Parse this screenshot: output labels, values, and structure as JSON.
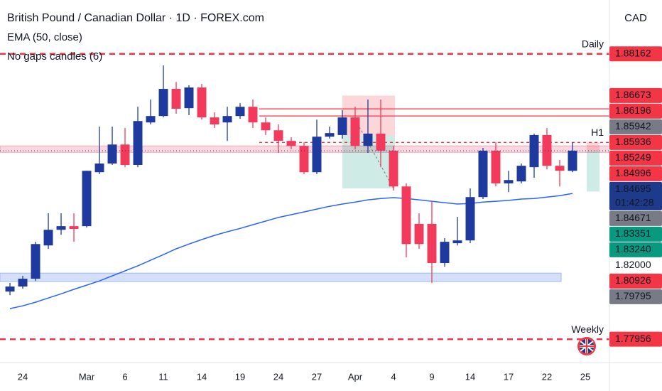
{
  "chart_data": {
    "type": "candlestick",
    "title": "British Pound / Canadian Dollar · 1D · FOREX.com",
    "subtitle": "No gaps candles (6)",
    "currency": "CAD",
    "up_color": "#1e3a9e",
    "down_color": "#f23a5c",
    "open": [
      1.7966,
      1.7984,
      1.8012,
      1.8131,
      1.8187,
      1.82,
      1.82,
      1.8393,
      1.8424,
      1.8492,
      1.8419,
      1.8571,
      1.8594,
      1.8691,
      1.8622,
      1.8696,
      1.8589,
      1.8571,
      1.8594,
      1.8627,
      1.8571,
      1.8543,
      1.8505,
      1.8487,
      1.8393,
      1.852,
      1.8526,
      1.8589,
      1.8487,
      1.8531,
      1.847,
      1.8342,
      1.8208,
      1.8208,
      1.8068,
      1.8139,
      1.8149,
      1.8304,
      1.847,
      1.8353,
      1.836,
      1.8411,
      1.8526,
      1.8416,
      1.8398
    ],
    "high": [
      1.7997,
      1.8022,
      1.8144,
      1.8246,
      1.8246,
      1.8246,
      1.8398,
      1.8556,
      1.8556,
      1.8551,
      1.8627,
      1.8653,
      1.8775,
      1.8716,
      1.8704,
      1.8709,
      1.8607,
      1.8627,
      1.864,
      1.8653,
      1.8589,
      1.8564,
      1.8518,
      1.85,
      1.8581,
      1.8556,
      1.8615,
      1.8627,
      1.8653,
      1.8653,
      1.8487,
      1.8353,
      1.8246,
      1.8289,
      1.8157,
      1.8233,
      1.8335,
      1.848,
      1.85,
      1.8398,
      1.8424,
      1.8531,
      1.8551,
      1.8437,
      1.85
    ],
    "low": [
      1.7953,
      1.7976,
      1.8004,
      1.8119,
      1.8169,
      1.8144,
      1.8195,
      1.8386,
      1.8419,
      1.8411,
      1.8411,
      1.8564,
      1.8589,
      1.8602,
      1.8597,
      1.8581,
      1.8551,
      1.8505,
      1.8584,
      1.8551,
      1.8526,
      1.8462,
      1.8475,
      1.8386,
      1.8386,
      1.8513,
      1.8513,
      1.8475,
      1.8462,
      1.8411,
      1.8327,
      1.8088,
      1.8119,
      1.7997,
      1.8055,
      1.8131,
      1.8139,
      1.8297,
      1.8342,
      1.8322,
      1.8353,
      1.8373,
      1.8403,
      1.8342,
      1.8393
    ],
    "close": [
      1.7984,
      1.8012,
      1.8136,
      1.8187,
      1.82,
      1.819,
      1.8398,
      1.8424,
      1.8492,
      1.8419,
      1.8576,
      1.8594,
      1.8691,
      1.862,
      1.8696,
      1.8589,
      1.8564,
      1.8594,
      1.8627,
      1.8571,
      1.8543,
      1.8505,
      1.8487,
      1.8393,
      1.852,
      1.8533,
      1.8589,
      1.8487,
      1.8531,
      1.847,
      1.8342,
      1.8136,
      1.8136,
      1.8068,
      1.8144,
      1.8149,
      1.8304,
      1.847,
      1.8353,
      1.8365,
      1.8416,
      1.8526,
      1.8416,
      1.8398,
      1.847
    ],
    "ema": {
      "name": "EMA (50, close)",
      "color": "#2962ff",
      "values": [
        1.7905,
        1.7915,
        1.7928,
        1.7943,
        1.7958,
        1.7974,
        1.7989,
        1.8004,
        1.8022,
        1.804,
        1.8058,
        1.8078,
        1.8098,
        1.8119,
        1.8136,
        1.8152,
        1.8167,
        1.818,
        1.8192,
        1.8205,
        1.8218,
        1.8231,
        1.8241,
        1.8251,
        1.8261,
        1.8271,
        1.8279,
        1.8286,
        1.8294,
        1.8299,
        1.8302,
        1.8299,
        1.8294,
        1.8289,
        1.8284,
        1.8279,
        1.8281,
        1.8286,
        1.8289,
        1.8292,
        1.8297,
        1.8299,
        1.8304,
        1.8309,
        1.8317
      ]
    },
    "xlim": [
      -0.78,
      46.89
    ],
    "xticks": [
      {
        "value": 1,
        "label": "24"
      },
      {
        "value": 6,
        "label": "Mar"
      },
      {
        "value": 9,
        "label": "6"
      },
      {
        "value": 12,
        "label": "11"
      },
      {
        "value": 15,
        "label": "14"
      },
      {
        "value": 18,
        "label": "19"
      },
      {
        "value": 21,
        "label": "24"
      },
      {
        "value": 24,
        "label": "27"
      },
      {
        "value": 27,
        "label": "Apr"
      },
      {
        "value": 30,
        "label": "4"
      },
      {
        "value": 33,
        "label": "9"
      },
      {
        "value": 36,
        "label": "14"
      },
      {
        "value": 39,
        "label": "17"
      },
      {
        "value": 42,
        "label": "22"
      },
      {
        "value": 45,
        "label": "25"
      }
    ],
    "ylim": [
      1.7712,
      1.9009
    ],
    "yticks": [
      {
        "value": 1.82,
        "label": "1.82000"
      }
    ],
    "levels": [
      {
        "value": 1.88162,
        "label": "Daily",
        "style": "dashed"
      },
      {
        "value": 1.77956,
        "label": "Weekly",
        "style": "dashed"
      },
      {
        "value": 1.84996,
        "label": "H1",
        "style": "short-dash"
      },
      {
        "value": 1.86196,
        "style": "solid"
      },
      {
        "value": 1.85942,
        "style": "solid"
      }
    ],
    "zones": [
      {
        "low": 1.8464,
        "high": 1.8487,
        "color": "#f4a6b6"
      },
      {
        "low": 1.8002,
        "high": 1.8032,
        "color": "#9fb8f5"
      }
    ],
    "positions": [
      {
        "stop": 1.86673,
        "entry": 1.85249,
        "target": 1.83351
      },
      {
        "stop": 1.84996,
        "entry": 1.84695,
        "target": 1.8324
      }
    ],
    "last_price": 1.84695,
    "countdown": "01:42:28",
    "price_labels": [
      {
        "value": 1.88162,
        "color": "#f23645"
      },
      {
        "value": 1.86673,
        "color": "#f23645"
      },
      {
        "value": 1.86196,
        "color": "#f23645"
      },
      {
        "value": 1.85942,
        "color": "#787b86"
      },
      {
        "value": 1.85936,
        "color": "#f23645"
      },
      {
        "value": 1.85249,
        "color": "#f23645"
      },
      {
        "value": 1.84996,
        "color": "#f23645"
      },
      {
        "value": 1.84671,
        "color": "#787b86"
      },
      {
        "value": 1.83351,
        "color": "#089981"
      },
      {
        "value": 1.8324,
        "label": "1.83240",
        "color": "#089981"
      },
      {
        "value": 1.80926,
        "color": "#f23645"
      },
      {
        "value": 1.79795,
        "color": "#787b86"
      },
      {
        "value": 1.77956,
        "color": "#f23645"
      }
    ]
  }
}
